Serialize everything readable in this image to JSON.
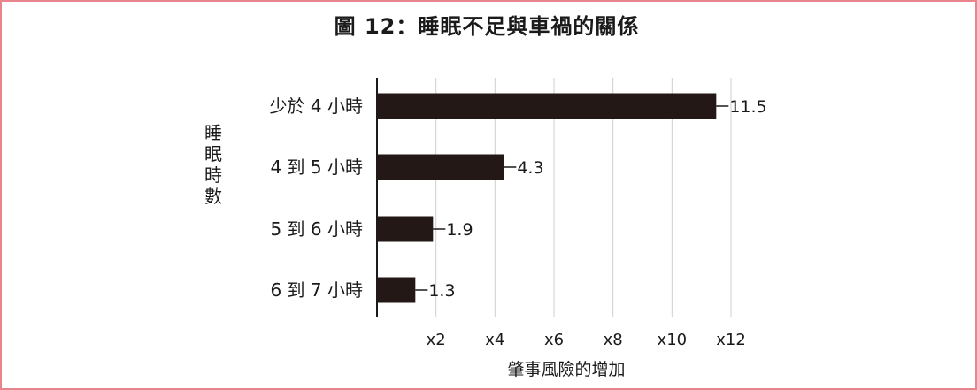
{
  "title": "圖 12：睡眠不足與車禍的關係",
  "chart_data": {
    "type": "bar",
    "orientation": "horizontal",
    "categories": [
      "少於 4 小時",
      "4 到 5 小時",
      "5 到 6 小時",
      "6 到 7 小時"
    ],
    "values": [
      11.5,
      4.3,
      1.9,
      1.3
    ],
    "value_labels": [
      "11.5",
      "4.3",
      "1.9",
      "1.3"
    ],
    "xlabel": "肇事風險的增加",
    "ylabel": "睡眠時數",
    "xlim": [
      0,
      12
    ],
    "xticks": [
      2,
      4,
      6,
      8,
      10,
      12
    ],
    "xtick_labels": [
      "x2",
      "x4",
      "x6",
      "x8",
      "x10",
      "x12"
    ],
    "grid": "vertical",
    "bar_color": "#231815"
  },
  "colors": {
    "frame_border": "#e8848b",
    "gridline": "#cfcfcf",
    "text": "#1a1a1a"
  }
}
